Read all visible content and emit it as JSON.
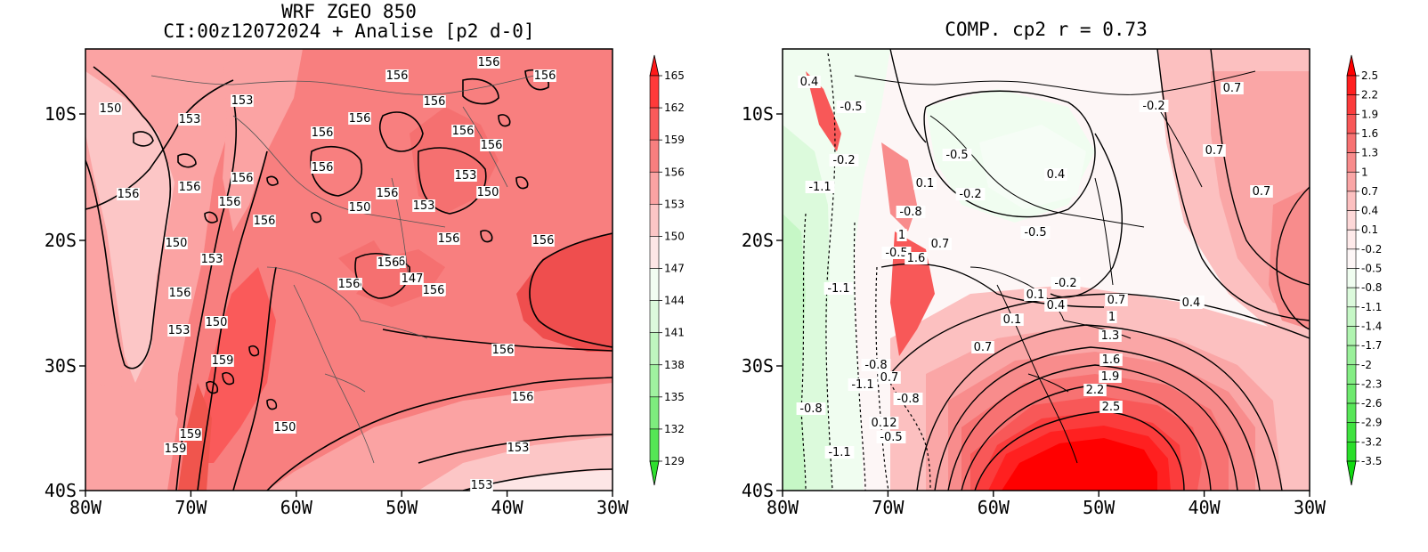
{
  "panels": [
    {
      "id": "left",
      "title_line1": "WRF ZGEO 850",
      "title_line2": "CI:00z12072024 + Analise  [p2 d-0]",
      "x_ticks": [
        "80W",
        "70W",
        "60W",
        "50W",
        "40W",
        "30W"
      ],
      "y_ticks": [
        "10S",
        "20S",
        "30S",
        "40S"
      ],
      "colorbar_labels": [
        "165",
        "162",
        "159",
        "156",
        "153",
        "150",
        "147",
        "144",
        "141",
        "138",
        "135",
        "132",
        "129"
      ],
      "colorbar_colors": [
        "#ff1a1a",
        "#ff3a3a",
        "#fa5a5a",
        "#f87f7f",
        "#fba3a3",
        "#fcc6c6",
        "#fde6e6",
        "#f2fdf2",
        "#dcf9dc",
        "#bff6bf",
        "#a0f2a0",
        "#7eec7e",
        "#55e655",
        "#2ee02e"
      ],
      "contour_labels": [
        "150",
        "153",
        "153",
        "156",
        "156",
        "156",
        "156",
        "156",
        "156",
        "156",
        "156",
        "156",
        "156",
        "153",
        "156",
        "150",
        "153",
        "150",
        "156",
        "156",
        "156",
        "156",
        "156",
        "150",
        "153",
        "156",
        "156",
        "159",
        "159",
        "156",
        "156",
        "156",
        "156",
        "150",
        "153",
        "159",
        "156",
        "159",
        "153",
        "153",
        "150",
        "147",
        "156",
        "156",
        "156"
      ]
    },
    {
      "id": "right",
      "title_line1": "COMP. cp2  r =  0.73",
      "x_ticks": [
        "80W",
        "70W",
        "60W",
        "50W",
        "40W",
        "30W"
      ],
      "y_ticks": [
        "10S",
        "20S",
        "30S",
        "40S"
      ],
      "colorbar_labels": [
        "2.5",
        "2.2",
        "1.9",
        "1.6",
        "1.3",
        "1",
        "0.7",
        "0.4",
        "0.1",
        "-0.2",
        "-0.5",
        "-0.8",
        "-1.1",
        "-1.4",
        "-1.7",
        "-2",
        "-2.3",
        "-2.6",
        "-2.9",
        "-3.2",
        "-3.5"
      ],
      "colorbar_colors": [
        "#ff0000",
        "#ff2020",
        "#fb3c3c",
        "#f85858",
        "#f77272",
        "#f88c8c",
        "#faa6a6",
        "#fcc0c0",
        "#fdd8d8",
        "#feeaea",
        "#fdf6f6",
        "#f0fdf0",
        "#dcfadc",
        "#c6f7c6",
        "#b0f4b0",
        "#9af09a",
        "#84ed84",
        "#6ee96e",
        "#58e658",
        "#40e240",
        "#2ade2a",
        "#10da10"
      ],
      "contour_labels": [
        "0.4",
        "-0.5",
        "-0.2",
        "0.7",
        "0.7",
        "-0.5",
        "0.1",
        "0.4",
        "-1.1",
        "-0.2",
        "-0.8",
        "-0.5",
        "1",
        "-0.5",
        "-0.2",
        "0.1",
        "0.4",
        "0.7",
        "1.6",
        "0.7",
        "-0.2",
        "-1.1",
        "0.1",
        "0.7",
        "0.4",
        "1",
        "1.3",
        "0.4",
        "0.7",
        "1.6",
        "-0.8",
        "1.9",
        "-1.1",
        "0.7",
        "2.2",
        "-0.8",
        "2.5",
        "-0.8",
        "0.12",
        "-0.5",
        "-1.1"
      ]
    }
  ]
}
